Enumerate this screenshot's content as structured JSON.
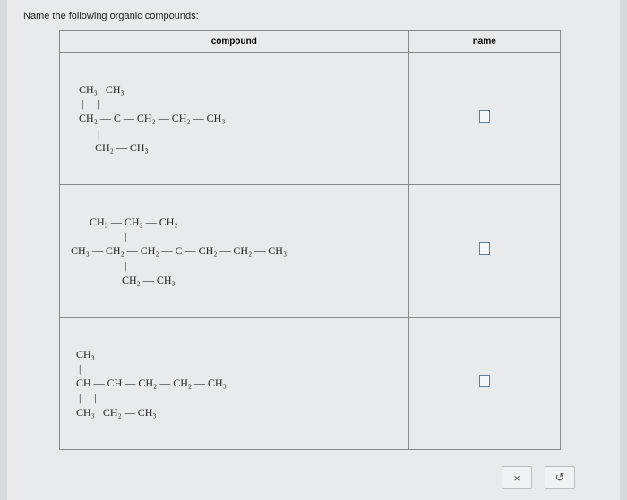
{
  "prompt": "Name the following organic compounds:",
  "headers": {
    "compound": "compound",
    "name": "name"
  },
  "rows": [
    {
      "structure_lines": [
        "   CH₃   CH₃",
        "    |     |",
        "   CH₂ — C — CH₂ — CH₂ — CH₃",
        "          |",
        "         CH₂ — CH₃"
      ]
    },
    {
      "structure_lines": [
        "       CH₃ — CH₂ — CH₂",
        "                    |",
        "CH₃ — CH₂ — CH₂ — C — CH₂ — CH₂ — CH₃",
        "                    |",
        "                   CH₂ — CH₃"
      ]
    },
    {
      "structure_lines": [
        "  CH₃",
        "   |",
        "  CH — CH — CH₂ — CH₂ — CH₃",
        "   |     |",
        "  CH₃   CH₂ — CH₃"
      ]
    }
  ],
  "toolbar": {
    "close": "×",
    "reset": "↺"
  }
}
